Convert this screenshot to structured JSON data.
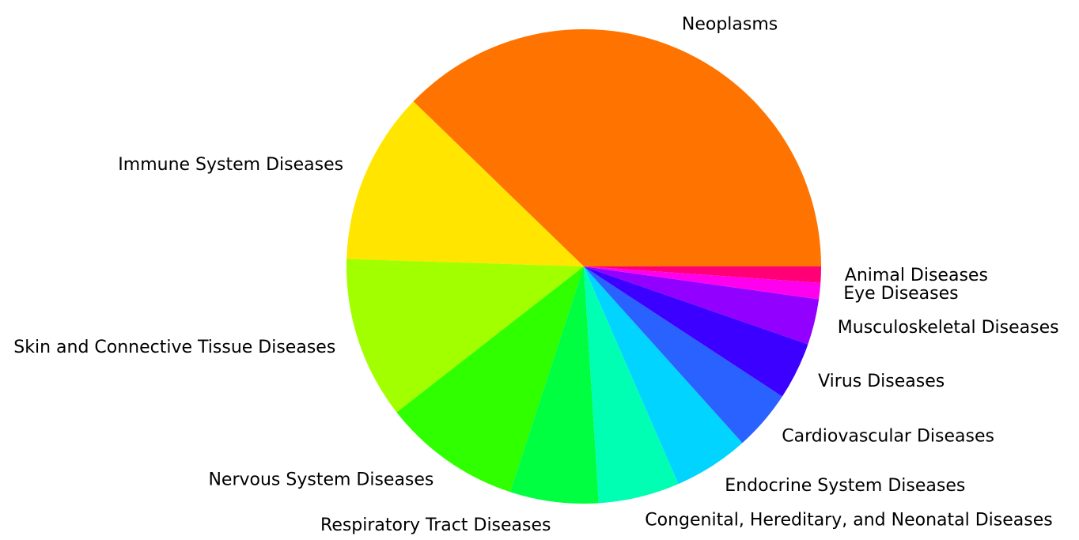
{
  "chart_data": {
    "type": "pie",
    "title": "",
    "start_angle_deg": 0,
    "direction": "counterclockwise",
    "slices": [
      {
        "label": "Neoplasms",
        "value": 37.6,
        "color": "#FF7300"
      },
      {
        "label": "Immune System Diseases",
        "value": 11.7,
        "color": "#FFE500"
      },
      {
        "label": "Skin and Connective Tissue Diseases",
        "value": 11.0,
        "color": "#A2FF00"
      },
      {
        "label": "Nervous System Diseases",
        "value": 9.4,
        "color": "#30FF00"
      },
      {
        "label": "Respiratory Tract Diseases",
        "value": 6.0,
        "color": "#00FF41"
      },
      {
        "label": "Congenital, Hereditary, and Neonatal Diseases",
        "value": 5.5,
        "color": "#00FFB3"
      },
      {
        "label": "Endocrine System Diseases",
        "value": 5.1,
        "color": "#00D4FF"
      },
      {
        "label": "Cardiovascular Diseases",
        "value": 4.1,
        "color": "#2962FF"
      },
      {
        "label": "Virus Diseases",
        "value": 3.9,
        "color": "#3B00FF"
      },
      {
        "label": "Musculoskeletal Diseases",
        "value": 3.1,
        "color": "#9200FF"
      },
      {
        "label": "Eye Diseases",
        "value": 1.1,
        "color": "#FF00EE"
      },
      {
        "label": "Animal Diseases",
        "value": 1.1,
        "color": "#FF0077"
      }
    ]
  }
}
